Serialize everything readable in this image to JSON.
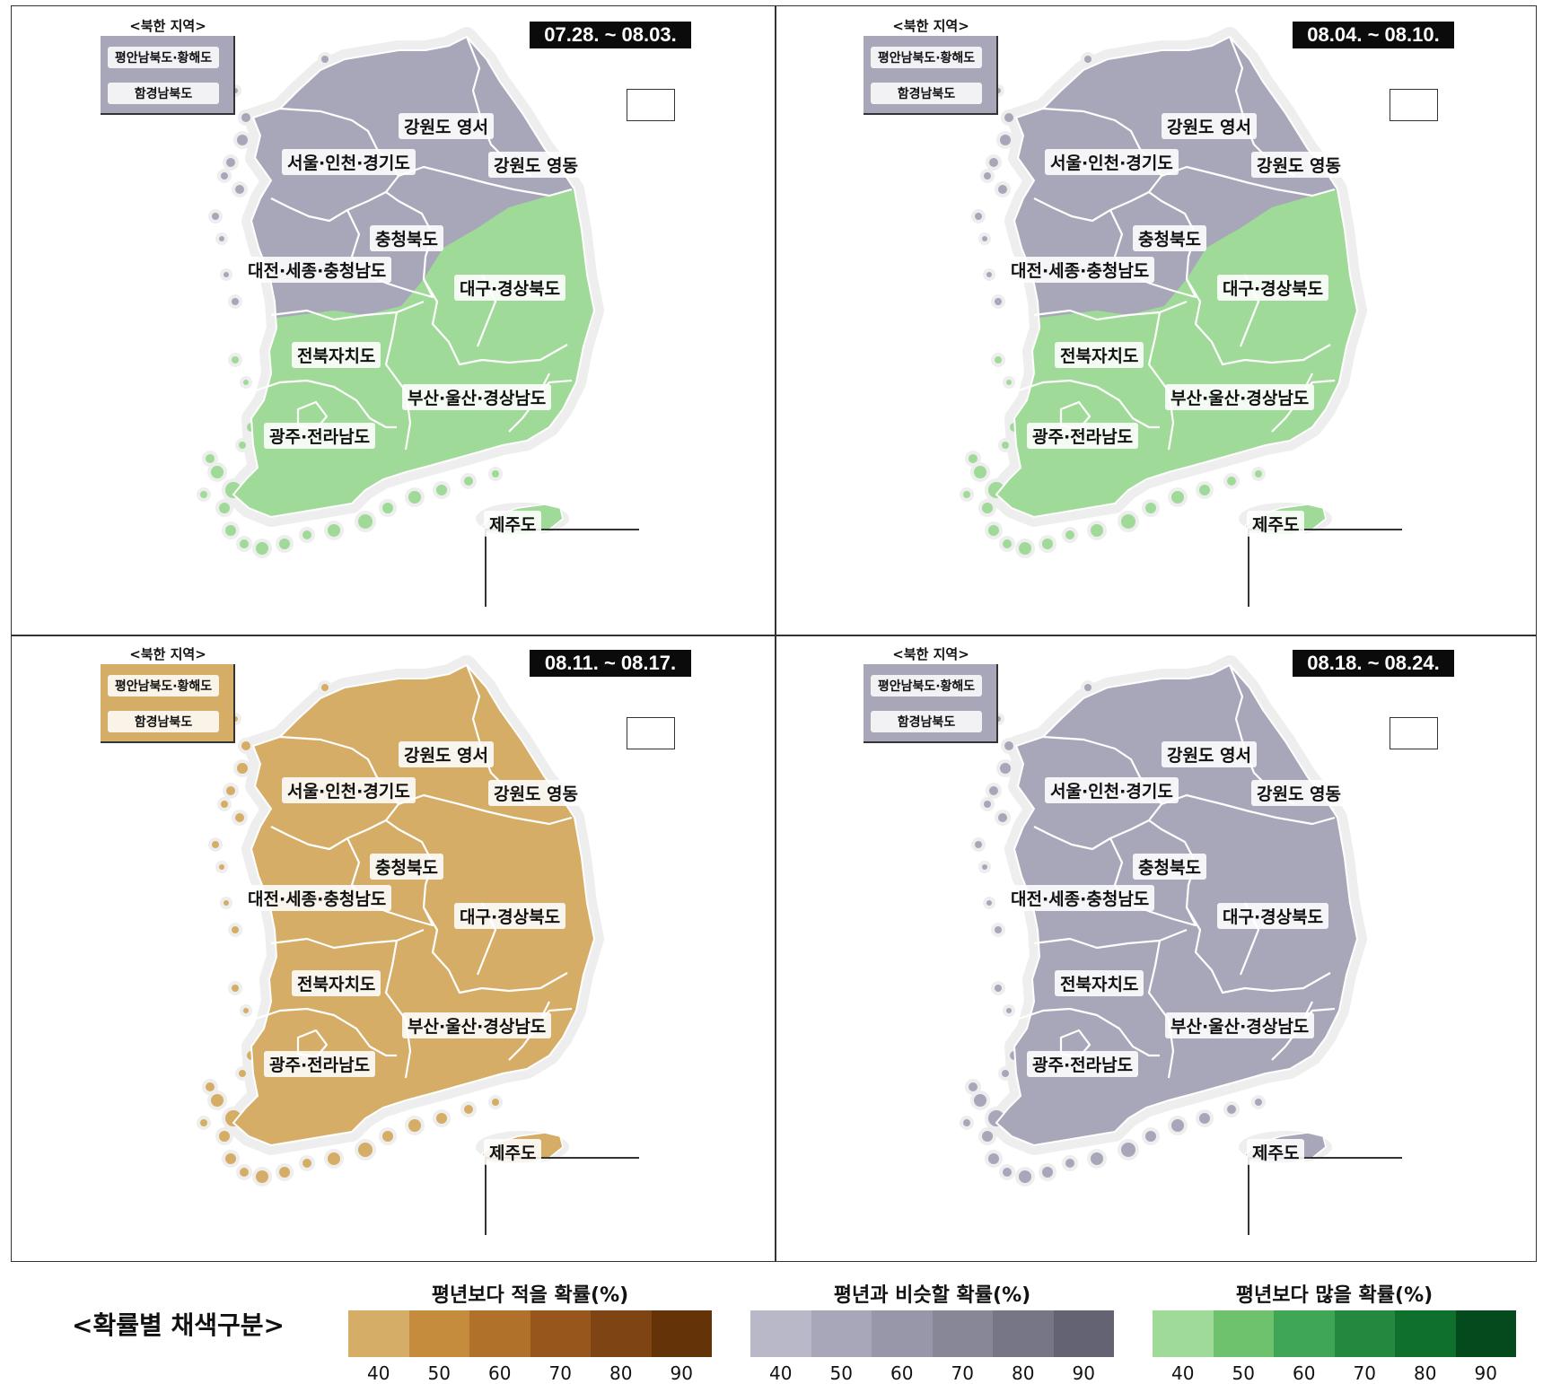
{
  "north_korea_title": "<북한 지역>",
  "north_korea_regions": [
    "평안남북도·황해도",
    "함경남북도"
  ],
  "region_labels": {
    "gangwon_yeongseo": "강원도 영서",
    "gangwon_yeongdong": "강원도 영동",
    "seoul_incheon_gyeonggi": "서울·인천·경기도",
    "chungbuk": "충청북도",
    "daejeon_sejong_chungnam": "대전·세종·충청남도",
    "daegu_gyeongbuk": "대구·경상북도",
    "jeonbuk": "전북자치도",
    "busan_ulsan_gyeongnam": "부산·울산·경상남도",
    "gwangju_jeonnam": "광주·전라남도",
    "jeju": "제주도"
  },
  "panels": [
    {
      "date": "07.28. ~ 08.03.",
      "north": "similar",
      "northwest": "similar",
      "south": "above",
      "jeju": "above"
    },
    {
      "date": "08.04. ~ 08.10.",
      "north": "similar",
      "northwest": "similar",
      "south": "above",
      "jeju": "above"
    },
    {
      "date": "08.11. ~ 08.17.",
      "north": "below",
      "northwest": "below",
      "south": "below",
      "jeju": "below"
    },
    {
      "date": "08.18. ~ 08.24.",
      "north": "similar",
      "northwest": "similar",
      "south": "similar",
      "jeju": "similar"
    }
  ],
  "colors": {
    "below": "#d5ad66",
    "similar": "#a8a7b9",
    "above": "#a0da98",
    "coast": "#eeeeee"
  },
  "legend": {
    "title": "<확률별 채색구분>",
    "ticks": [
      "40",
      "50",
      "60",
      "70",
      "80",
      "90"
    ],
    "groups": [
      {
        "title": "평년보다 적을 확률(%)",
        "colors": [
          "#d5ad66",
          "#c58c3e",
          "#b0722a",
          "#97561b",
          "#7e4413",
          "#653308"
        ]
      },
      {
        "title": "평년과 비슷할 확률(%)",
        "colors": [
          "#b8b8c8",
          "#a8a7b9",
          "#9897a9",
          "#888797",
          "#777686",
          "#646373"
        ]
      },
      {
        "title": "평년보다 많을 확률(%)",
        "colors": [
          "#a0da98",
          "#6ec26e",
          "#3fa656",
          "#25883f",
          "#0f6f2c",
          "#054a1c"
        ]
      }
    ]
  }
}
